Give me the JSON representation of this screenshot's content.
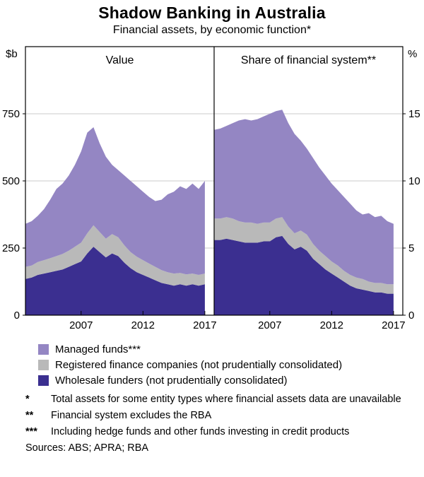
{
  "header": {
    "title": "Shadow Banking in Australia",
    "subtitle": "Financial assets, by economic function*"
  },
  "chart_data": {
    "type": "area",
    "stacked": true,
    "x_domain": [
      2002.5,
      2017.75
    ],
    "x": [
      2002.5,
      2003,
      2003.5,
      2004,
      2004.5,
      2005,
      2005.5,
      2006,
      2006.5,
      2007,
      2007.5,
      2008,
      2008.5,
      2009,
      2009.5,
      2010,
      2010.5,
      2011,
      2011.5,
      2012,
      2012.5,
      2013,
      2013.5,
      2014,
      2014.5,
      2015,
      2015.5,
      2016,
      2016.5,
      2017
    ],
    "panels": [
      {
        "key": "value",
        "label": "Value",
        "unit": "$b",
        "axis": "left",
        "ylim": [
          0,
          1000
        ],
        "yticks": [
          0,
          250,
          500,
          750
        ],
        "xticks": [
          2007,
          2012,
          2017
        ]
      },
      {
        "key": "share",
        "label": "Share of financial system**",
        "unit": "%",
        "axis": "right",
        "ylim": [
          0,
          20
        ],
        "yticks": [
          0,
          5,
          10,
          15
        ],
        "xticks": [
          2007,
          2012,
          2017
        ]
      }
    ],
    "series": [
      {
        "id": "wholesale-funders",
        "name": "Wholesale funders (not prudentially consolidated)",
        "color": "#3b2f90",
        "values": {
          "value": [
            135,
            140,
            150,
            155,
            160,
            165,
            170,
            180,
            190,
            200,
            230,
            255,
            235,
            215,
            230,
            220,
            195,
            175,
            160,
            150,
            140,
            130,
            120,
            115,
            110,
            115,
            110,
            115,
            110,
            115
          ],
          "share": [
            5.6,
            5.6,
            5.7,
            5.6,
            5.5,
            5.4,
            5.4,
            5.4,
            5.5,
            5.5,
            5.8,
            5.9,
            5.3,
            4.9,
            5.1,
            4.8,
            4.2,
            3.8,
            3.4,
            3.1,
            2.8,
            2.5,
            2.2,
            2.0,
            1.9,
            1.8,
            1.7,
            1.7,
            1.6,
            1.6
          ]
        }
      },
      {
        "id": "registered-finance-companies",
        "name": "Registered finance companies (not prudentially consolidated)",
        "color": "#b9b9b9",
        "values": {
          "value": [
            45,
            45,
            48,
            50,
            52,
            55,
            58,
            60,
            65,
            70,
            75,
            80,
            75,
            70,
            72,
            70,
            65,
            60,
            58,
            55,
            52,
            50,
            48,
            45,
            45,
            42,
            42,
            40,
            40,
            40
          ],
          "share": [
            1.6,
            1.6,
            1.6,
            1.6,
            1.5,
            1.5,
            1.5,
            1.4,
            1.4,
            1.4,
            1.4,
            1.4,
            1.3,
            1.2,
            1.2,
            1.2,
            1.1,
            1.0,
            1.0,
            0.9,
            0.9,
            0.8,
            0.8,
            0.8,
            0.8,
            0.7,
            0.7,
            0.7,
            0.7,
            0.7
          ]
        }
      },
      {
        "id": "managed-funds",
        "name": "Managed funds***",
        "color": "#9486c3",
        "values": {
          "value": [
            160,
            165,
            172,
            190,
            218,
            250,
            262,
            280,
            305,
            340,
            375,
            365,
            330,
            305,
            258,
            250,
            260,
            265,
            262,
            255,
            248,
            245,
            262,
            290,
            305,
            323,
            318,
            335,
            320,
            345
          ],
          "share": [
            6.6,
            6.7,
            6.8,
            7.1,
            7.5,
            7.7,
            7.6,
            7.8,
            7.9,
            8.1,
            8.0,
            8.0,
            7.7,
            7.4,
            6.7,
            6.4,
            6.4,
            6.2,
            6.0,
            5.8,
            5.6,
            5.5,
            5.3,
            5.0,
            4.8,
            5.1,
            4.9,
            5.0,
            4.7,
            4.5
          ]
        }
      }
    ],
    "grid": true,
    "gridline_color": "#cbcbcb",
    "frame_color": "#000000"
  },
  "legend": [
    {
      "label": "Managed funds***",
      "color": "#9486c3"
    },
    {
      "label": "Registered finance companies (not prudentially consolidated)",
      "color": "#b9b9b9"
    },
    {
      "label": "Wholesale funders (not prudentially consolidated)",
      "color": "#3b2f90"
    }
  ],
  "footnotes": [
    {
      "marker": "*",
      "text": "Total assets for some entity types where financial assets data are unavailable"
    },
    {
      "marker": "**",
      "text": "Financial system excludes the RBA"
    },
    {
      "marker": "***",
      "text": "Including hedge funds and other funds investing in credit products"
    }
  ],
  "sources": "Sources: ABS; APRA; RBA"
}
